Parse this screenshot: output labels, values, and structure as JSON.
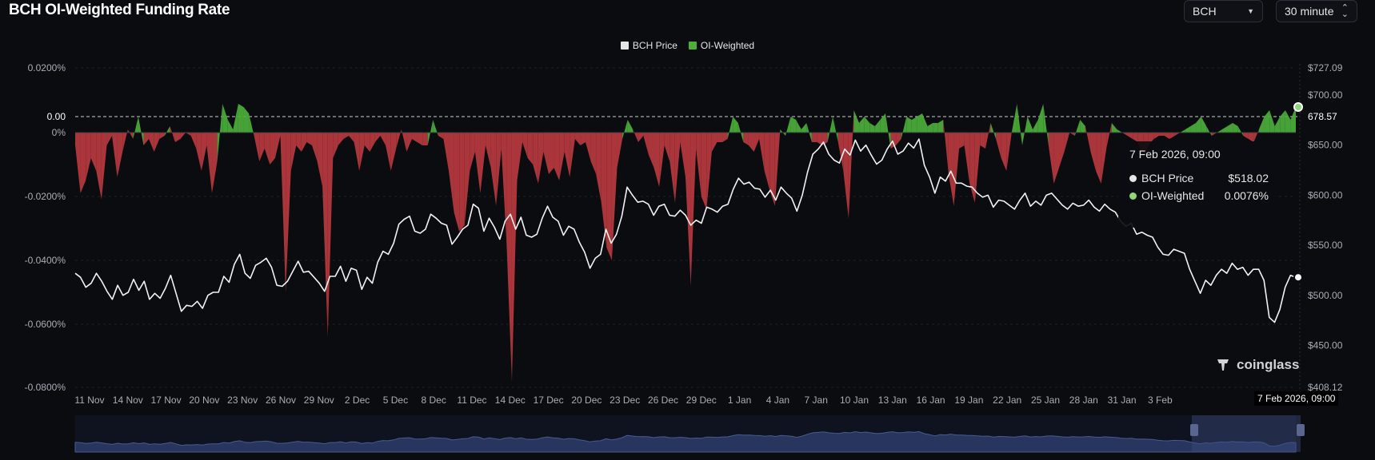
{
  "title": "BCH OI-Weighted Funding Rate",
  "controls": {
    "coin": "BCH",
    "interval": "30 minute"
  },
  "legend": [
    {
      "label": "BCH Price",
      "color": "#e6e6e6"
    },
    {
      "label": "OI-Weighted",
      "color": "#4caf3a"
    }
  ],
  "tooltip": {
    "date": "7 Feb 2026, 09:00",
    "rows": [
      {
        "label": "BCH Price",
        "value": "$518.02",
        "color": "#e6e6e6"
      },
      {
        "label": "OI-Weighted",
        "value": "0.0076%",
        "color": "#8fd67a"
      }
    ]
  },
  "current_price_label": "678.57",
  "crosshair_date": "7 Feb 2026, 09:00",
  "brand": "coinglass",
  "colors": {
    "positive": "#4caf3a",
    "negative": "#b8393f",
    "price": "#f2f2f2",
    "navigator": "#28355f"
  },
  "chart_data": {
    "type": "area",
    "title": "BCH OI-Weighted Funding Rate",
    "x_labels": [
      "11 Nov",
      "14 Nov",
      "17 Nov",
      "20 Nov",
      "23 Nov",
      "26 Nov",
      "29 Nov",
      "2 Dec",
      "5 Dec",
      "8 Dec",
      "11 Dec",
      "14 Dec",
      "17 Dec",
      "20 Dec",
      "23 Dec",
      "26 Dec",
      "29 Dec",
      "1 Jan",
      "4 Jan",
      "7 Jan",
      "10 Jan",
      "13 Jan",
      "16 Jan",
      "19 Jan",
      "22 Jan",
      "25 Jan",
      "28 Jan",
      "31 Jan",
      "3 Feb"
    ],
    "left_axis": {
      "ticks": [
        "0.0200%",
        "0.00",
        "0%",
        "-0.0200%",
        "-0.0400%",
        "-0.0600%",
        "-0.0800%"
      ],
      "range": [
        -0.08,
        0.02
      ]
    },
    "right_axis": {
      "ticks": [
        "$727.09",
        "$700.00",
        "$650.00",
        "$600.00",
        "$550.00",
        "$500.00",
        "$450.00",
        "$408.12"
      ],
      "range": [
        408.12,
        727.09
      ]
    },
    "series": [
      {
        "name": "OI-Weighted",
        "unit": "%",
        "values": [
          -0.004,
          -0.019,
          -0.015,
          -0.008,
          -0.012,
          -0.021,
          -0.004,
          -0.001,
          -0.014,
          -0.006,
          0.001,
          -0.002,
          0.005,
          -0.004,
          -0.002,
          -0.006,
          -0.002,
          -0.001,
          0.002,
          -0.003,
          -0.002,
          0.0,
          -0.001,
          -0.005,
          -0.012,
          -0.004,
          -0.019,
          -0.009,
          0.009,
          0.004,
          0.001,
          0.009,
          0.008,
          0.006,
          -0.001,
          -0.009,
          -0.005,
          -0.01,
          -0.008,
          -0.001,
          -0.05,
          -0.012,
          -0.004,
          -0.006,
          -0.003,
          -0.004,
          -0.009,
          -0.017,
          -0.064,
          -0.008,
          -0.004,
          -0.002,
          -0.001,
          -0.003,
          -0.012,
          -0.004,
          -0.006,
          -0.003,
          -0.001,
          -0.004,
          -0.012,
          -0.005,
          0.001,
          -0.006,
          -0.002,
          -0.003,
          -0.004,
          -0.004,
          0.004,
          -0.001,
          -0.002,
          -0.012,
          -0.025,
          -0.031,
          -0.029,
          -0.012,
          -0.006,
          -0.019,
          -0.004,
          -0.011,
          -0.023,
          -0.005,
          -0.035,
          -0.078,
          -0.015,
          -0.003,
          -0.008,
          -0.01,
          -0.016,
          -0.006,
          -0.013,
          -0.011,
          -0.015,
          -0.006,
          -0.014,
          -0.002,
          -0.004,
          -0.003,
          -0.009,
          -0.013,
          -0.022,
          -0.036,
          -0.04,
          -0.011,
          -0.002,
          0.004,
          0.001,
          -0.003,
          -0.001,
          -0.007,
          -0.011,
          -0.017,
          -0.004,
          -0.009,
          -0.022,
          -0.003,
          -0.014,
          -0.048,
          -0.005,
          -0.02,
          -0.024,
          -0.006,
          -0.003,
          -0.003,
          -0.002,
          0.005,
          0.003,
          -0.003,
          -0.004,
          -0.006,
          -0.002,
          -0.012,
          -0.018,
          -0.023,
          0.001,
          -0.001,
          0.005,
          0.004,
          0.001,
          0.003,
          -0.003,
          -0.003,
          -0.004,
          -0.003,
          0.005,
          -0.003,
          -0.012,
          -0.027,
          0.007,
          0.003,
          0.005,
          0.003,
          0.002,
          0.004,
          0.006,
          -0.005,
          -0.004,
          -0.002,
          0.005,
          0.004,
          0.005,
          0.006,
          0.002,
          0.003,
          0.003,
          0.004,
          -0.013,
          -0.023,
          -0.005,
          -0.004,
          -0.016,
          -0.022,
          -0.004,
          -0.005,
          0.003,
          -0.002,
          -0.008,
          -0.012,
          0.0,
          0.009,
          -0.004,
          0.005,
          0.001,
          0.004,
          0.009,
          -0.004,
          -0.016,
          -0.011,
          -0.006,
          0.0,
          -0.001,
          0.004,
          0.002,
          -0.006,
          -0.012,
          -0.016,
          -0.005,
          0.003,
          0.001,
          0.0,
          -0.001,
          -0.002,
          -0.003,
          -0.008,
          -0.004,
          -0.002,
          -0.001,
          -0.001,
          -0.002,
          -0.001,
          0.0,
          0.001,
          0.002,
          0.003,
          0.005,
          0.002,
          -0.001,
          0.0,
          0.001,
          0.002,
          0.003,
          0.002,
          -0.001,
          -0.002,
          -0.003,
          0.001,
          0.005,
          0.007,
          0.002,
          0.005,
          0.007,
          0.004,
          0.008
        ]
      },
      {
        "name": "BCH Price",
        "unit": "$",
        "values": [
          522,
          518,
          508,
          512,
          522,
          514,
          504,
          496,
          510,
          500,
          503,
          516,
          505,
          514,
          496,
          502,
          497,
          507,
          520,
          502,
          484,
          490,
          489,
          494,
          487,
          500,
          503,
          503,
          519,
          513,
          531,
          541,
          522,
          517,
          530,
          533,
          537,
          528,
          510,
          509,
          514,
          524,
          534,
          523,
          524,
          518,
          512,
          504,
          519,
          519,
          529,
          514,
          527,
          525,
          506,
          518,
          512,
          533,
          544,
          541,
          552,
          571,
          576,
          579,
          564,
          562,
          566,
          581,
          577,
          572,
          570,
          551,
          558,
          566,
          570,
          591,
          587,
          564,
          577,
          568,
          556,
          574,
          581,
          566,
          578,
          560,
          558,
          561,
          577,
          589,
          578,
          574,
          560,
          569,
          566,
          553,
          543,
          527,
          537,
          541,
          566,
          552,
          561,
          579,
          608,
          600,
          593,
          594,
          591,
          580,
          589,
          591,
          580,
          579,
          585,
          580,
          570,
          575,
          572,
          588,
          586,
          583,
          589,
          591,
          606,
          617,
          611,
          613,
          607,
          606,
          598,
          605,
          595,
          608,
          602,
          597,
          584,
          600,
          623,
          641,
          646,
          653,
          641,
          635,
          632,
          646,
          640,
          655,
          644,
          650,
          640,
          631,
          635,
          646,
          654,
          641,
          644,
          652,
          647,
          656,
          630,
          618,
          602,
          618,
          614,
          624,
          612,
          612,
          609,
          608,
          602,
          598,
          600,
          588,
          595,
          594,
          590,
          586,
          595,
          602,
          589,
          594,
          590,
          600,
          602,
          596,
          590,
          586,
          592,
          589,
          590,
          595,
          588,
          584,
          591,
          586,
          583,
          574,
          569,
          572,
          561,
          563,
          560,
          558,
          548,
          541,
          540,
          546,
          544,
          542,
          526,
          514,
          502,
          515,
          510,
          520,
          526,
          522,
          532,
          526,
          528,
          520,
          526,
          526,
          515,
          478,
          473,
          486,
          508,
          520,
          518
        ]
      }
    ]
  }
}
